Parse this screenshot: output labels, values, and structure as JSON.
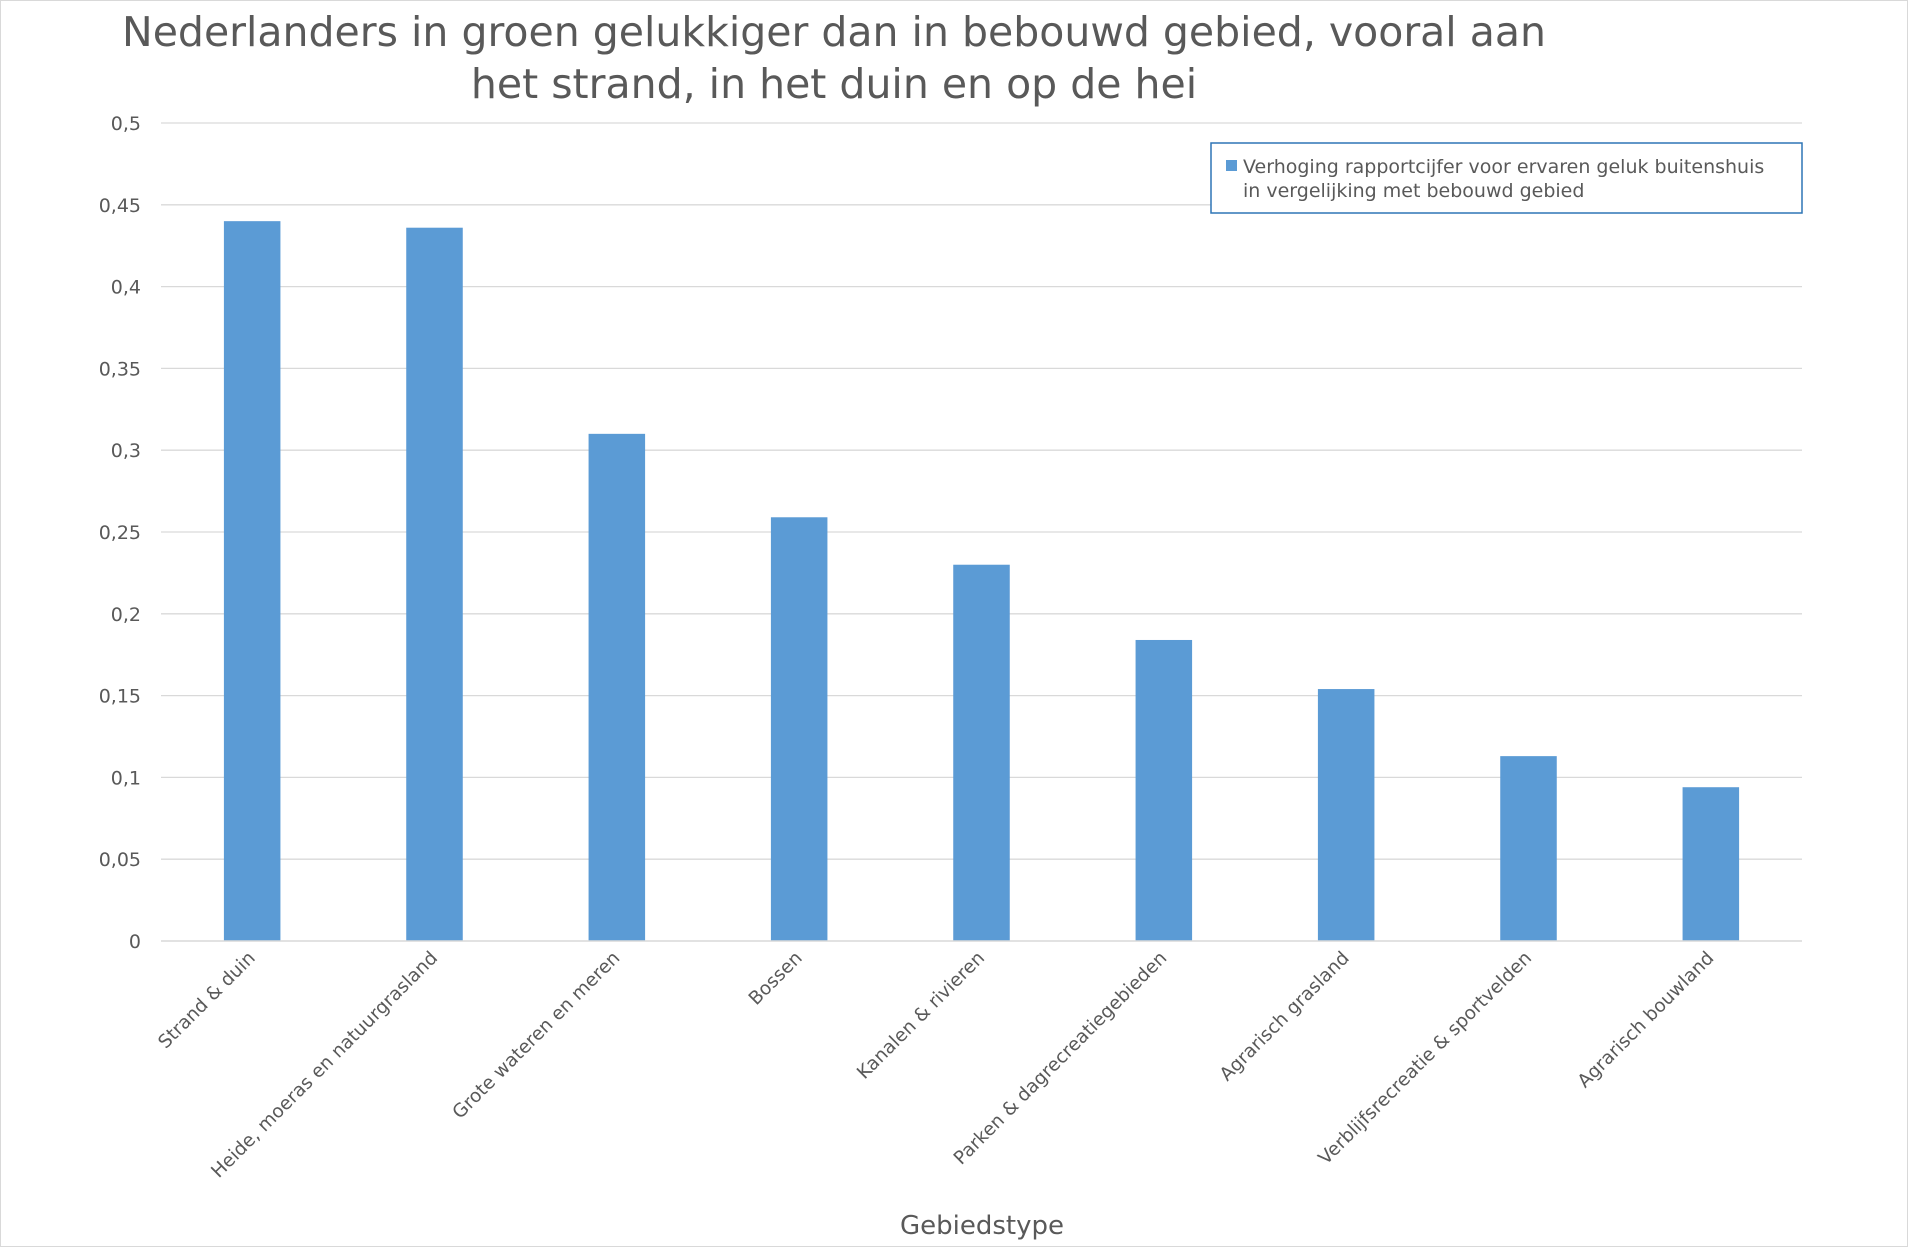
{
  "chart_data": {
    "type": "bar",
    "title": [
      "Nederlanders in groen gelukkiger dan in bebouwd gebied, vooral aan",
      "het strand, in het duin en op de hei"
    ],
    "xlabel": "Gebiedstype",
    "ylabel": "",
    "ylim": [
      0,
      0.5
    ],
    "yticks": [
      0,
      0.05,
      0.1,
      0.15,
      0.2,
      0.25,
      0.3,
      0.35,
      0.4,
      0.45,
      0.5
    ],
    "ytick_labels": [
      "0",
      "0,05",
      "0,1",
      "0,15",
      "0,2",
      "0,25",
      "0,3",
      "0,35",
      "0,4",
      "0,45",
      "0,5"
    ],
    "categories": [
      "Strand & duin",
      "Heide, moeras en natuurgrasland",
      "Grote wateren en meren",
      "Bossen",
      "Kanalen & rivieren",
      "Parken & dagrecreatiegebieden",
      "Agrarisch grasland",
      "Verblijfsrecreatie & sportvelden",
      "Agrarisch bouwland"
    ],
    "series": [
      {
        "name": "Verhoging rapportcijfer voor ervaren geluk buitenshuis in vergelijking met bebouwd gebied",
        "legend_lines": [
          "Verhoging rapportcijfer voor ervaren geluk buitenshuis",
          "in vergelijking met bebouwd gebied"
        ],
        "values": [
          0.44,
          0.436,
          0.31,
          0.259,
          0.23,
          0.184,
          0.154,
          0.113,
          0.094
        ],
        "color": "#5b9bd5"
      }
    ],
    "grid": true,
    "legend_position": "top-right",
    "colors": {
      "gridline": "#d9d9d9",
      "text": "#595959",
      "legend_border": "#2e75b6"
    }
  }
}
